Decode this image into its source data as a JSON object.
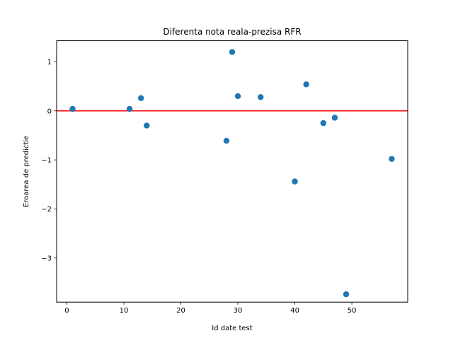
{
  "chart_data": {
    "type": "scatter",
    "title": "Diferenta nota reala-prezisa RFR",
    "xlabel": "Id date test",
    "ylabel": "Eroarea de predictie",
    "xlim": [
      -1.8,
      59.8
    ],
    "ylim": [
      -3.9,
      1.43
    ],
    "xticks": [
      0,
      10,
      20,
      30,
      40,
      50
    ],
    "xtick_labels": [
      "0",
      "10",
      "20",
      "30",
      "40",
      "50"
    ],
    "yticks": [
      1,
      0,
      -1,
      -2,
      -3
    ],
    "ytick_labels": [
      "1",
      "0",
      "−1",
      "−2",
      "−3"
    ],
    "grid": false,
    "reference_line": {
      "y": 0,
      "color": "#ff0000"
    },
    "point_color": "#1f77b4",
    "points": [
      {
        "x": 1,
        "y": 0.04
      },
      {
        "x": 11,
        "y": 0.04
      },
      {
        "x": 13,
        "y": 0.26
      },
      {
        "x": 14,
        "y": -0.3
      },
      {
        "x": 28,
        "y": -0.61
      },
      {
        "x": 29,
        "y": 1.2
      },
      {
        "x": 30,
        "y": 0.3
      },
      {
        "x": 34,
        "y": 0.28
      },
      {
        "x": 40,
        "y": -1.44
      },
      {
        "x": 42,
        "y": 0.54
      },
      {
        "x": 45,
        "y": -0.25
      },
      {
        "x": 47,
        "y": -0.14
      },
      {
        "x": 49,
        "y": -3.74
      },
      {
        "x": 57,
        "y": -0.98
      }
    ]
  }
}
